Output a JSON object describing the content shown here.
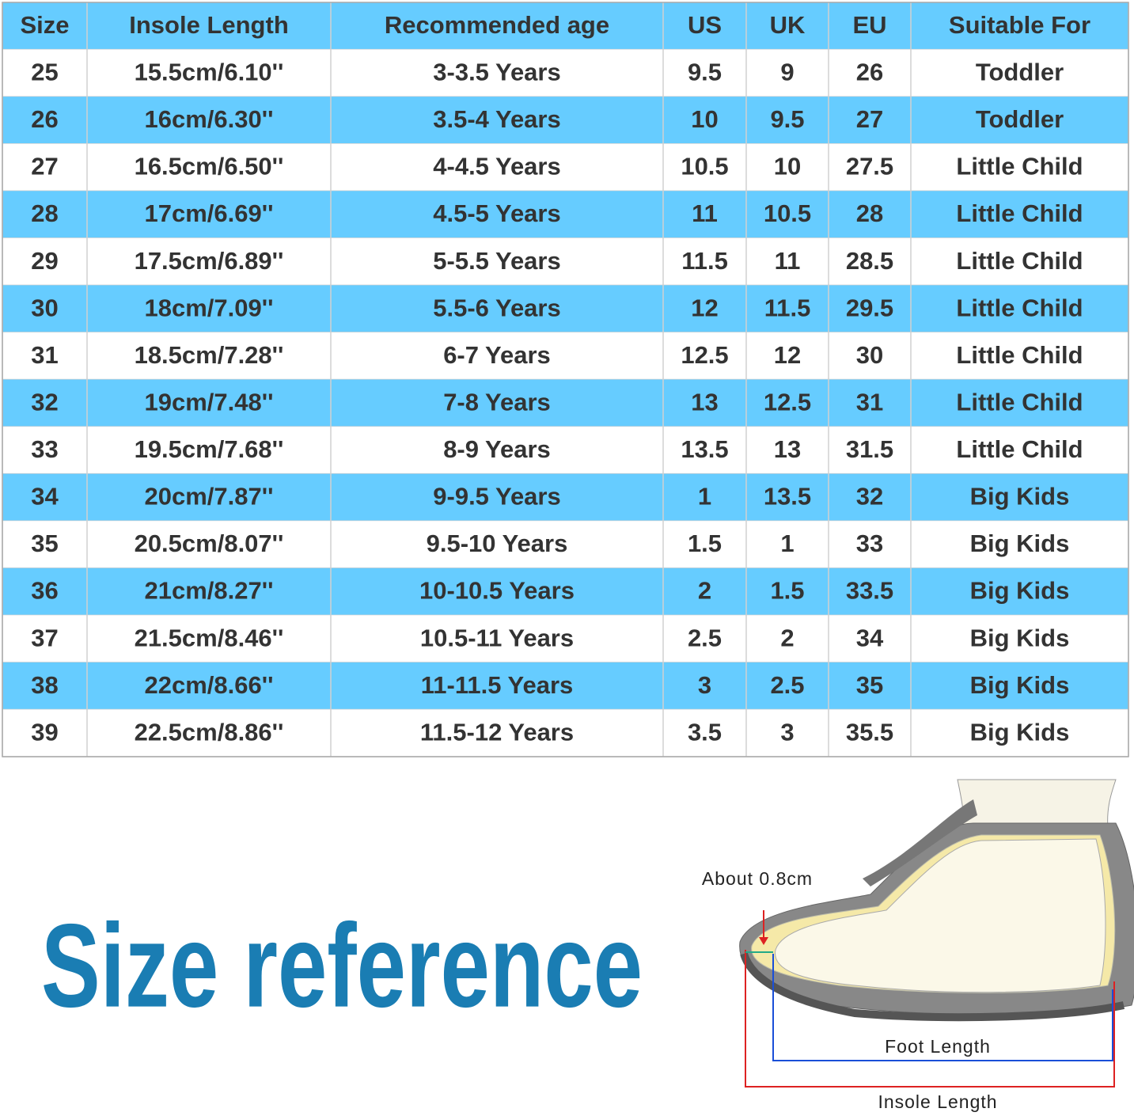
{
  "table": {
    "header": [
      "Size",
      "Insole Length",
      "Recommended age",
      "US",
      "UK",
      "EU",
      "Suitable For"
    ],
    "rows": [
      [
        "25",
        "15.5cm/6.10''",
        "3-3.5 Years",
        "9.5",
        "9",
        "26",
        "Toddler"
      ],
      [
        "26",
        "16cm/6.30''",
        "3.5-4 Years",
        "10",
        "9.5",
        "27",
        "Toddler"
      ],
      [
        "27",
        "16.5cm/6.50''",
        "4-4.5 Years",
        "10.5",
        "10",
        "27.5",
        "Little Child"
      ],
      [
        "28",
        "17cm/6.69''",
        "4.5-5 Years",
        "11",
        "10.5",
        "28",
        "Little Child"
      ],
      [
        "29",
        "17.5cm/6.89''",
        "5-5.5 Years",
        "11.5",
        "11",
        "28.5",
        "Little Child"
      ],
      [
        "30",
        "18cm/7.09''",
        "5.5-6 Years",
        "12",
        "11.5",
        "29.5",
        "Little Child"
      ],
      [
        "31",
        "18.5cm/7.28''",
        "6-7 Years",
        "12.5",
        "12",
        "30",
        "Little Child"
      ],
      [
        "32",
        "19cm/7.48''",
        "7-8 Years",
        "13",
        "12.5",
        "31",
        "Little Child"
      ],
      [
        "33",
        "19.5cm/7.68''",
        "8-9 Years",
        "13.5",
        "13",
        "31.5",
        "Little Child"
      ],
      [
        "34",
        "20cm/7.87''",
        "9-9.5 Years",
        "1",
        "13.5",
        "32",
        "Big Kids"
      ],
      [
        "35",
        "20.5cm/8.07''",
        "9.5-10 Years",
        "1.5",
        "1",
        "33",
        "Big Kids"
      ],
      [
        "36",
        "21cm/8.27''",
        "10-10.5 Years",
        "2",
        "1.5",
        "33.5",
        "Big Kids"
      ],
      [
        "37",
        "21.5cm/8.46''",
        "10.5-11 Years",
        "2.5",
        "2",
        "34",
        "Big Kids"
      ],
      [
        "38",
        "22cm/8.66''",
        "11-11.5 Years",
        "3",
        "2.5",
        "35",
        "Big Kids"
      ],
      [
        "39",
        "22.5cm/8.86''",
        "11.5-12 Years",
        "3.5",
        "3",
        "35.5",
        "Big Kids"
      ]
    ]
  },
  "title": "Size reference",
  "diagram": {
    "gap_label": "About 0.8cm",
    "foot_label": "Foot Length",
    "insole_label": "Insole Length"
  }
}
